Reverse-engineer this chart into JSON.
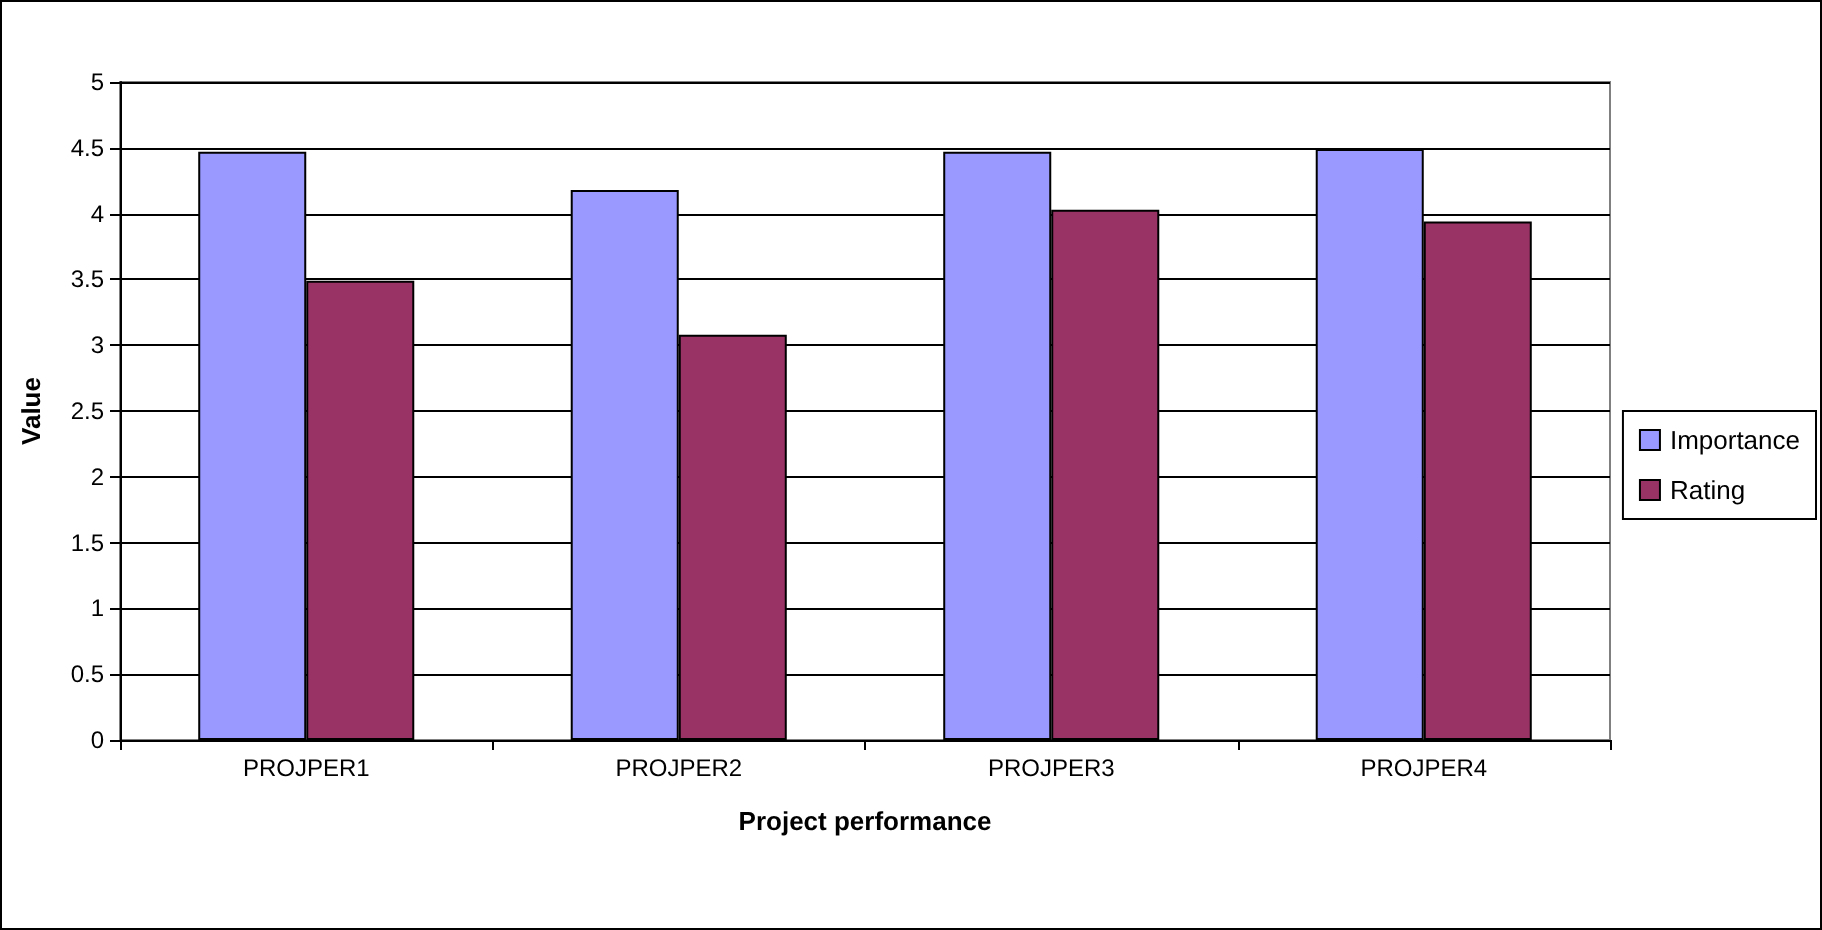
{
  "chart_data": {
    "type": "bar",
    "xlabel": "Project performance",
    "ylabel": "Value",
    "categories": [
      "PROJPER1",
      "PROJPER2",
      "PROJPER3",
      "PROJPER4"
    ],
    "series": [
      {
        "name": "Importance",
        "color": "#9999ff",
        "values": [
          4.47,
          4.18,
          4.47,
          4.49
        ]
      },
      {
        "name": "Rating",
        "color": "#993366",
        "values": [
          3.49,
          3.08,
          4.03,
          3.94
        ]
      }
    ],
    "ylim": [
      0,
      5
    ],
    "yticks": [
      0,
      0.5,
      1,
      1.5,
      2,
      2.5,
      3,
      3.5,
      4,
      4.5,
      5
    ],
    "grid": "y",
    "legend": "right"
  }
}
